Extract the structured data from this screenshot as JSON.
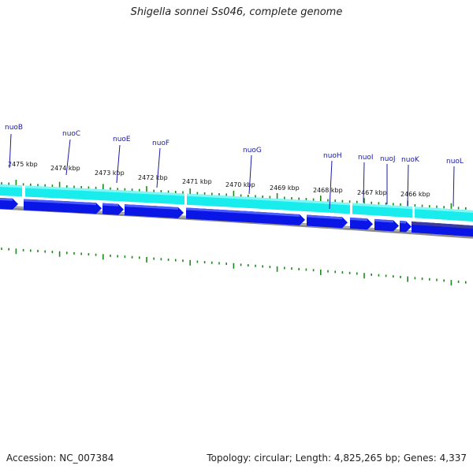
{
  "title": "Shigella sonnei Ss046, complete genome",
  "footer": {
    "accession": "Accession: NC_007384",
    "summary": "Topology: circular; Length: 4,825,265 bp; Genes: 4,337"
  },
  "colors": {
    "gene_strand": "#0a16e6",
    "gene_strand_dark": "#1f2fd9",
    "cds_band": "#19ecec",
    "cds_band_light": "#7ff7f7",
    "backbone": "#8c8c8c",
    "tick": "#1b8a1b",
    "label": "#1a1aa8"
  },
  "kbp_labels": [
    "2475 kbp",
    "2474 kbp",
    "2473 kbp",
    "2472 kbp",
    "2471 kbp",
    "2470 kbp",
    "2469 kbp",
    "2468 kbp",
    "2467 kbp",
    "2466 kbp"
  ],
  "gene_labels": [
    "nuoB",
    "nuoC",
    "nuoE",
    "nuoF",
    "nuoG",
    "nuoH",
    "nuoI",
    "nuoJ",
    "nuoK",
    "nuoL"
  ]
}
